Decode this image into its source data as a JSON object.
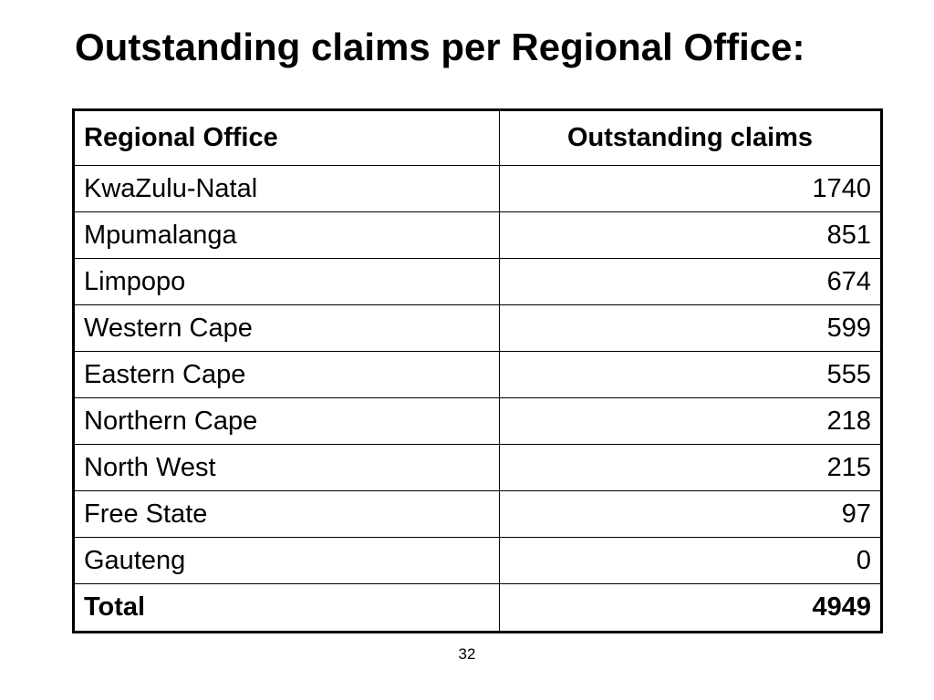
{
  "slide": {
    "title": "Outstanding claims per Regional Office:",
    "page_number": "32"
  },
  "table": {
    "headers": {
      "office": "Regional Office",
      "claims": "Outstanding claims"
    },
    "rows": [
      {
        "office": "KwaZulu-Natal",
        "claims": "1740"
      },
      {
        "office": "Mpumalanga",
        "claims": "851"
      },
      {
        "office": "Limpopo",
        "claims": "674"
      },
      {
        "office": "Western Cape",
        "claims": "599"
      },
      {
        "office": "Eastern Cape",
        "claims": "555"
      },
      {
        "office": "Northern Cape",
        "claims": "218"
      },
      {
        "office": "North West",
        "claims": "215"
      },
      {
        "office": "Free State",
        "claims": "97"
      },
      {
        "office": "Gauteng",
        "claims": "0"
      }
    ],
    "total": {
      "office": "Total",
      "claims": "4949"
    }
  }
}
